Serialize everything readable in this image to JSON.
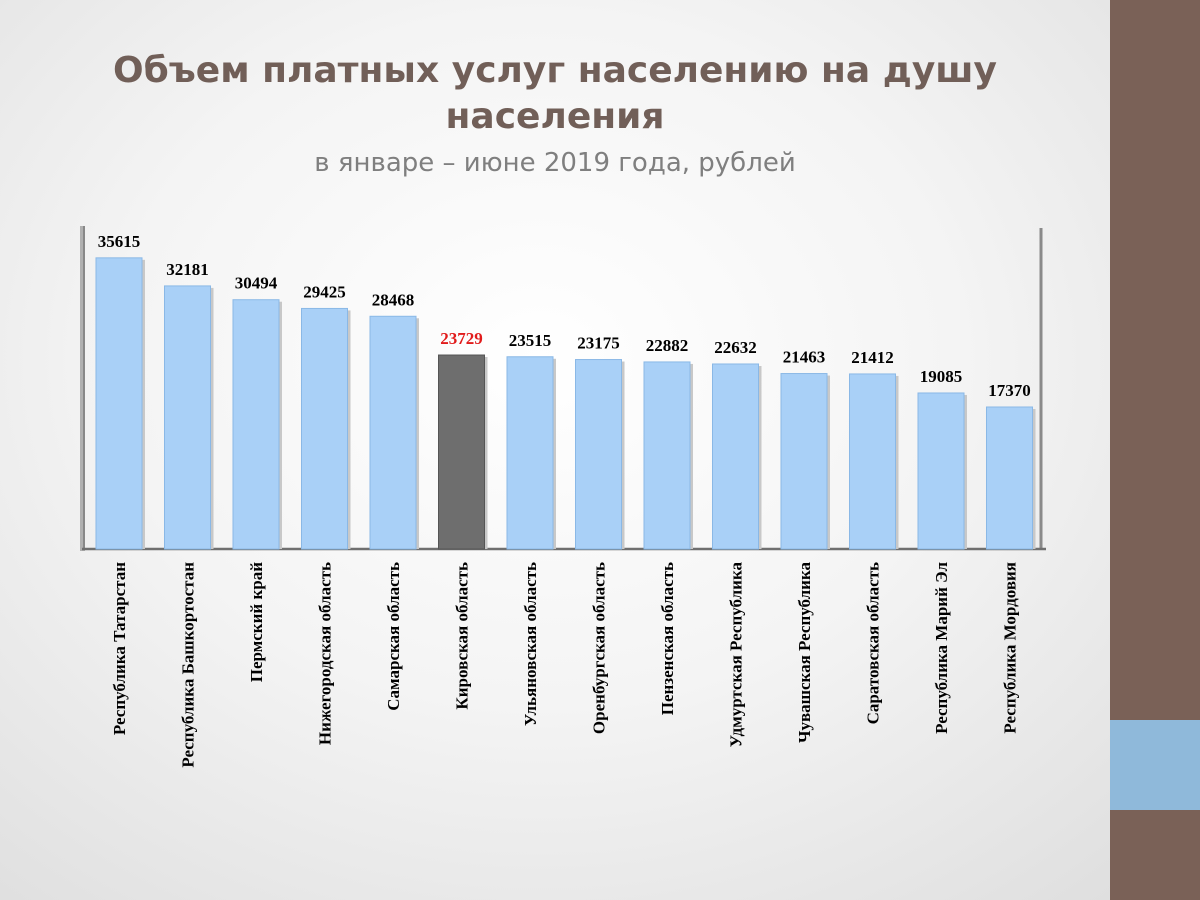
{
  "title": "Объем платных услуг населению на душу населения",
  "subtitle": "в январе – июне  2019 года, рублей",
  "colors": {
    "bar": "#a9d0f7",
    "highlight_bar": "#6e6e6e",
    "highlight_label": "#e11b1b",
    "label": "#000000",
    "title": "#715f58",
    "side_bar": "#7a6157",
    "side_accent": "#8fb9da"
  },
  "chart_data": {
    "type": "bar",
    "categories": [
      "Республика Татарстан",
      "Республика Башкортостан",
      "Пермский край",
      "Нижегородская область",
      "Самарская область",
      "Кировская область",
      "Ульяновская область",
      "Оренбургская область",
      "Пензенская область",
      "Удмуртская Республика",
      "Чувашская Республика",
      "Саратовская область",
      "Республика  Марий Эл",
      "Республика Мордовия"
    ],
    "values": [
      35615,
      32181,
      30494,
      29425,
      28468,
      23729,
      23515,
      23175,
      22882,
      22632,
      21463,
      21412,
      19085,
      17370
    ],
    "highlight": "Кировская область",
    "ylim": [
      0,
      40000
    ],
    "grid": false,
    "legend": "none"
  }
}
